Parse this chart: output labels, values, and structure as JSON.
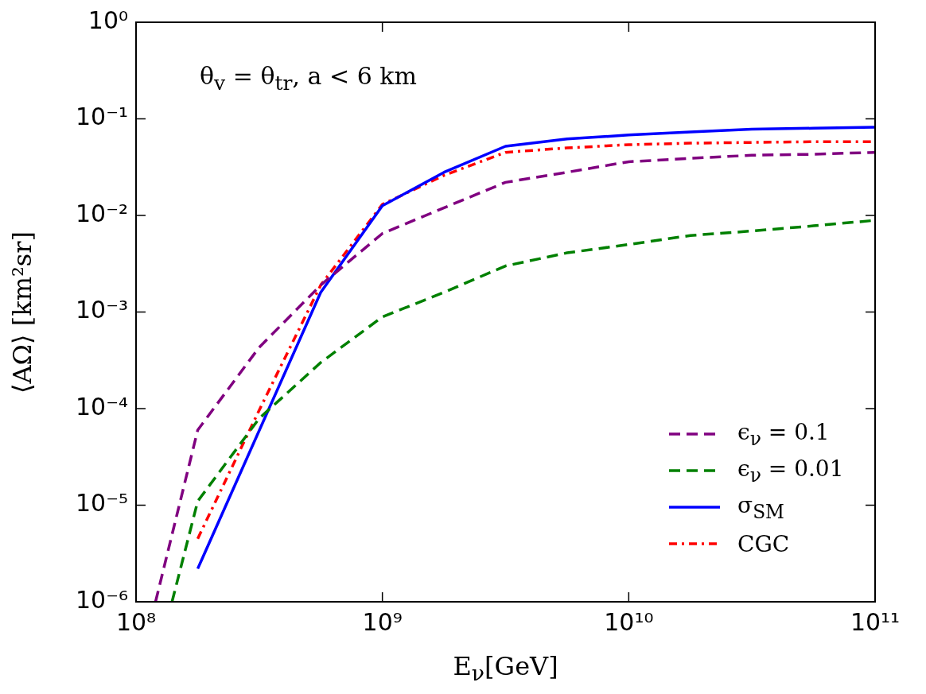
{
  "chart_data": {
    "type": "line",
    "xlabel": "E$_{ν}$[GeV]",
    "ylabel": "⟨AΩ⟩ [km²sr]",
    "annotations": [
      "θ$_{v}$ = θ$_{tr}$,  a < 6 km"
    ],
    "log": "xy",
    "grid": false,
    "legend": "bottom right",
    "marker": "none",
    "xlim": [
      100000000.0,
      100000000000.0
    ],
    "xticks": [
      {
        "value": 100000000.0,
        "label": "10⁸"
      },
      {
        "value": 1000000000.0,
        "label": "10⁹"
      },
      {
        "value": 10000000000.0,
        "label": "10¹⁰"
      },
      {
        "value": 100000000000.0,
        "label": "10¹¹"
      }
    ],
    "ylim": [
      1e-06,
      1
    ],
    "yticks": [
      {
        "value": 1e-06,
        "label": "10⁻⁶"
      },
      {
        "value": 1e-05,
        "label": "10⁻⁵"
      },
      {
        "value": 0.0001,
        "label": "10⁻⁴"
      },
      {
        "value": 0.001,
        "label": "10⁻³"
      },
      {
        "value": 0.01,
        "label": "10⁻²"
      },
      {
        "value": 0.1,
        "label": "10⁻¹"
      },
      {
        "value": 1,
        "label": "10⁰"
      }
    ],
    "series": [
      {
        "name": "ϵ$_{ν}$ = 0.1",
        "color": "#800080",
        "line_style": "dashed",
        "x": [
          120000000.0,
          178000000.0,
          316000000.0,
          562000000.0,
          1000000000.0,
          1780000000.0,
          3160000000.0,
          5620000000.0,
          10000000000.0,
          17800000000.0,
          31600000000.0,
          56200000000.0,
          100000000000.0
        ],
        "values": [
          1e-06,
          6e-05,
          0.00043,
          0.0019,
          0.0065,
          0.012,
          0.022,
          0.028,
          0.036,
          0.039,
          0.042,
          0.043,
          0.045
        ]
      },
      {
        "name": "ϵ$_{ν}$ = 0.01",
        "color": "#008000",
        "line_style": "dashed",
        "x": [
          140000000.0,
          178000000.0,
          316000000.0,
          562000000.0,
          1000000000.0,
          1780000000.0,
          3160000000.0,
          5620000000.0,
          10000000000.0,
          17800000000.0,
          31600000000.0,
          56200000000.0,
          100000000000.0
        ],
        "values": [
          1e-06,
          1.1e-05,
          7.9e-05,
          0.0003,
          0.00089,
          0.0016,
          0.003,
          0.0041,
          0.005,
          0.0062,
          0.0069,
          0.0078,
          0.0089
        ]
      },
      {
        "name": "σ$_{SM}$",
        "color": "#0000ff",
        "line_style": "solid",
        "x": [
          178000000.0,
          562000000.0,
          1000000000.0,
          1780000000.0,
          3160000000.0,
          5620000000.0,
          10000000000.0,
          17800000000.0,
          31600000000.0,
          56200000000.0,
          100000000000.0
        ],
        "values": [
          2.2e-06,
          0.0016,
          0.0126,
          0.028,
          0.052,
          0.062,
          0.068,
          0.073,
          0.078,
          0.08,
          0.082
        ]
      },
      {
        "name": "CGC",
        "color": "#ff0000",
        "line_style": "dotted",
        "x": [
          178000000.0,
          316000000.0,
          562000000.0,
          1000000000.0,
          1780000000.0,
          3160000000.0,
          5620000000.0,
          10000000000.0,
          17800000000.0,
          31600000000.0,
          56200000000.0,
          100000000000.0
        ],
        "values": [
          4.5e-06,
          9.6e-05,
          0.0019,
          0.013,
          0.026,
          0.045,
          0.05,
          0.054,
          0.056,
          0.057,
          0.058,
          0.058
        ]
      }
    ]
  }
}
